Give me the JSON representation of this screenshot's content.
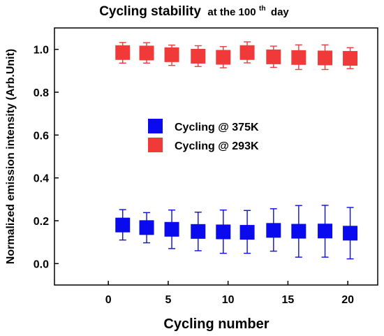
{
  "chart_data": {
    "type": "scatter",
    "title": {
      "main": "Cycling stability",
      "suffix_before_sup": "at the 100",
      "sup": "th",
      "suffix_after_sup": "day"
    },
    "xlabel": "Cycling number",
    "ylabel": "Normalized emission intensity (Arb.Unit)",
    "xlim": [
      -4.5,
      22.5
    ],
    "ylim": [
      -0.1,
      1.1
    ],
    "xticks": [
      0,
      5,
      10,
      15,
      20
    ],
    "xtick_labels": [
      "0",
      "5",
      "10",
      "15",
      "20"
    ],
    "yticks": [
      0.0,
      0.2,
      0.4,
      0.6,
      0.8,
      1.0
    ],
    "ytick_labels": [
      "0.0",
      "0.2",
      "0.4",
      "0.6",
      "0.8",
      "1.0"
    ],
    "grid": false,
    "legend_position": "center",
    "series": [
      {
        "name": "Cycling @ 375K",
        "color": "#0a0aee",
        "marker": "square",
        "x": [
          1.2,
          3.2,
          5.3,
          7.5,
          9.6,
          11.6,
          13.8,
          15.9,
          18.1,
          20.2
        ],
        "y": [
          0.18,
          0.168,
          0.16,
          0.15,
          0.148,
          0.146,
          0.155,
          0.151,
          0.152,
          0.142
        ],
        "err_low": [
          0.11,
          0.097,
          0.07,
          0.06,
          0.048,
          0.048,
          0.058,
          0.03,
          0.03,
          0.022
        ],
        "err_high": [
          0.252,
          0.238,
          0.25,
          0.24,
          0.25,
          0.248,
          0.256,
          0.271,
          0.272,
          0.262
        ]
      },
      {
        "name": "Cycling @ 293K",
        "color": "#f03a3a",
        "marker": "square",
        "x": [
          1.2,
          3.2,
          5.3,
          7.5,
          9.6,
          11.6,
          13.8,
          15.9,
          18.1,
          20.2
        ],
        "y": [
          0.985,
          0.983,
          0.975,
          0.968,
          0.963,
          0.985,
          0.965,
          0.962,
          0.96,
          0.958
        ],
        "err_low": [
          0.936,
          0.936,
          0.925,
          0.92,
          0.914,
          0.937,
          0.916,
          0.906,
          0.906,
          0.91
        ],
        "err_high": [
          1.032,
          1.031,
          1.02,
          1.017,
          1.013,
          1.035,
          1.015,
          1.021,
          1.021,
          1.008
        ]
      }
    ]
  }
}
